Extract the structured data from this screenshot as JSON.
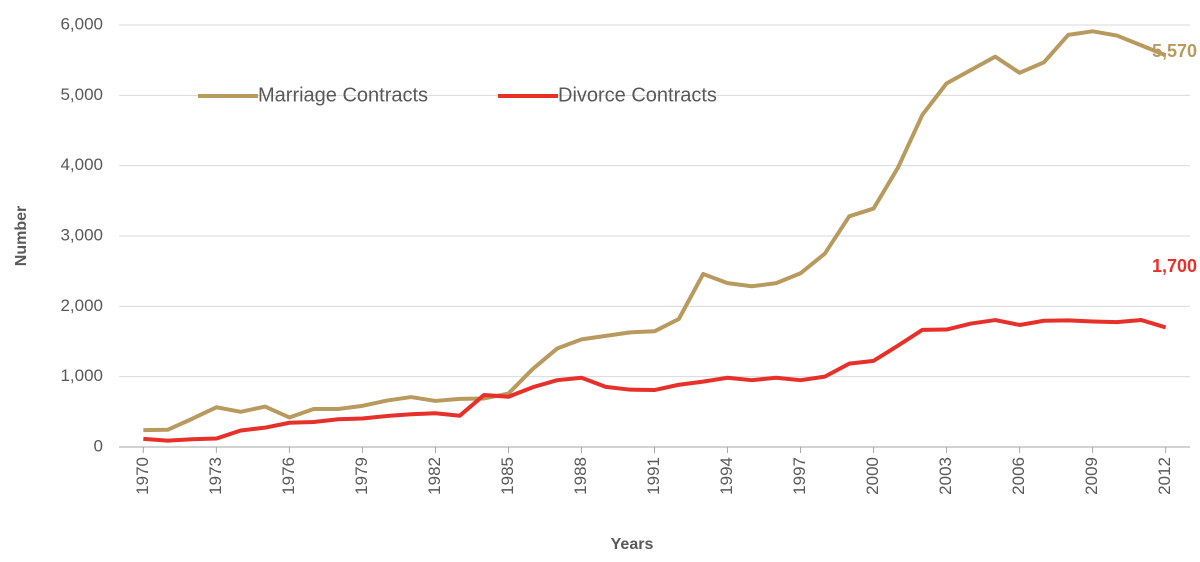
{
  "chart_data": {
    "type": "line",
    "x_label": "Years",
    "y_label": "Number",
    "x": [
      1970,
      1971,
      1972,
      1973,
      1974,
      1975,
      1976,
      1977,
      1978,
      1979,
      1980,
      1981,
      1982,
      1983,
      1984,
      1985,
      1986,
      1987,
      1988,
      1989,
      1990,
      1991,
      1992,
      1993,
      1994,
      1995,
      1996,
      1997,
      1998,
      1999,
      2000,
      2001,
      2002,
      2003,
      2004,
      2005,
      2006,
      2007,
      2008,
      2009,
      2010,
      2011,
      2012
    ],
    "series": [
      {
        "name": "Marriage Contracts",
        "color": "#b89a5e",
        "values": [
          240,
          245,
          400,
          565,
          500,
          575,
          420,
          540,
          540,
          585,
          660,
          710,
          655,
          685,
          690,
          760,
          1110,
          1400,
          1530,
          1580,
          1630,
          1645,
          1820,
          2460,
          2330,
          2285,
          2330,
          2470,
          2750,
          3280,
          3390,
          3970,
          4720,
          5170,
          5360,
          5550,
          5320,
          5470,
          5860,
          5910,
          5850,
          5710,
          5570
        ],
        "value_labels": [
          null,
          null,
          null,
          null,
          null,
          null,
          null,
          null,
          null,
          null,
          null,
          null,
          null,
          null,
          null,
          null,
          null,
          null,
          null,
          null,
          null,
          null,
          null,
          null,
          null,
          null,
          null,
          null,
          null,
          null,
          null,
          null,
          null,
          null,
          null,
          null,
          null,
          null,
          null,
          null,
          null,
          null,
          "5,570"
        ]
      },
      {
        "name": "Divorce Contracts",
        "color": "#e8302a",
        "values": [
          115,
          90,
          110,
          120,
          235,
          275,
          345,
          355,
          395,
          405,
          440,
          465,
          480,
          445,
          740,
          715,
          850,
          950,
          985,
          855,
          815,
          810,
          885,
          930,
          985,
          950,
          985,
          950,
          1000,
          1185,
          1225,
          1440,
          1665,
          1670,
          1755,
          1805,
          1735,
          1795,
          1800,
          1785,
          1775,
          1805,
          1700
        ],
        "value_labels": [
          null,
          null,
          null,
          null,
          null,
          null,
          null,
          null,
          null,
          null,
          null,
          null,
          null,
          null,
          null,
          null,
          null,
          null,
          null,
          null,
          null,
          null,
          null,
          null,
          null,
          null,
          null,
          null,
          null,
          null,
          null,
          null,
          null,
          null,
          null,
          null,
          null,
          null,
          null,
          null,
          null,
          null,
          "1,700"
        ]
      }
    ],
    "xlim": [
      1969,
      2013
    ],
    "xticks": [
      1970,
      1973,
      1976,
      1979,
      1982,
      1985,
      1988,
      1991,
      1994,
      1997,
      2000,
      2003,
      2006,
      2009,
      2012
    ],
    "ylim": [
      0,
      6000
    ],
    "yticks": [
      0,
      {
        "value": 1000,
        "label": "1,000"
      },
      {
        "value": 2000,
        "label": "2,000"
      },
      {
        "value": 3000,
        "label": "3,000"
      },
      {
        "value": 4000,
        "label": "4,000"
      },
      {
        "value": 5000,
        "label": "5,000"
      },
      {
        "value": 6000,
        "label": "6,000"
      }
    ],
    "grid": true,
    "legend": "top-left"
  }
}
